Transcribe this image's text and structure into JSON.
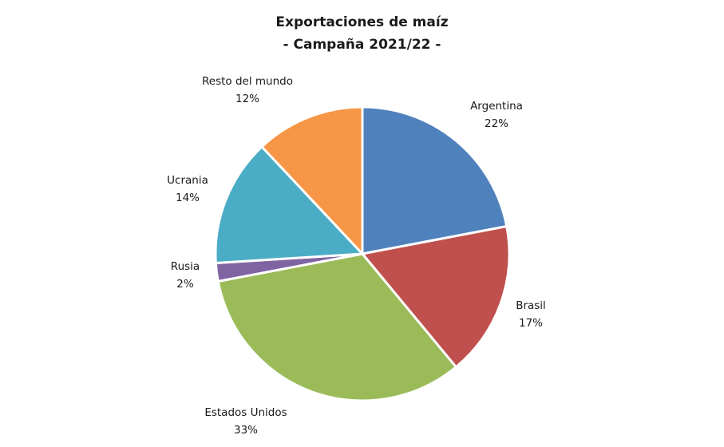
{
  "chart_data": {
    "type": "pie",
    "title": "Exportaciones de maíz",
    "subtitle": "- Campaña 2021/22 -",
    "categories": [
      "Argentina",
      "Brasil",
      "Estados Unidos",
      "Rusia",
      "Ucrania",
      "Resto del mundo"
    ],
    "values": [
      22,
      17,
      33,
      2,
      14,
      12
    ],
    "labels": [
      "22%",
      "17%",
      "33%",
      "2%",
      "14%",
      "12%"
    ],
    "colors": [
      "#4f81bd",
      "#c0504d",
      "#9bbb59",
      "#8064a2",
      "#4bacc6",
      "#f79646"
    ],
    "legend": "none",
    "data_labels": "category name and percentage, outside end"
  }
}
